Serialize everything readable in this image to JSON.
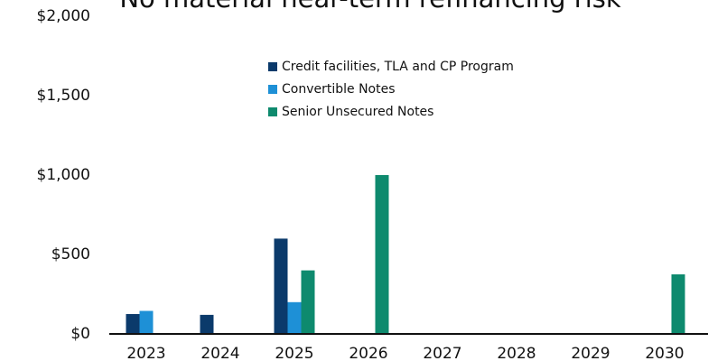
{
  "chart_data": {
    "type": "bar",
    "title": "No material near-term refinancing risk",
    "categories": [
      "2023",
      "2024",
      "2025",
      "2026",
      "2027",
      "2028",
      "2029",
      "2030"
    ],
    "series": [
      {
        "name": "Credit facilities, TLA and CP Program",
        "color": "#0b3a6b",
        "values": [
          125,
          120,
          600,
          null,
          null,
          null,
          null,
          null
        ]
      },
      {
        "name": "Convertible Notes",
        "color": "#1e90d6",
        "values": [
          145,
          null,
          200,
          null,
          null,
          null,
          null,
          null
        ]
      },
      {
        "name": "Senior Unsecured Notes",
        "color": "#0e8a6e",
        "values": [
          null,
          null,
          400,
          1000,
          null,
          null,
          null,
          375
        ]
      }
    ],
    "ylim": [
      0,
      2000
    ],
    "yticks": [
      {
        "value": 0,
        "label": "$0"
      },
      {
        "value": 500,
        "label": "$500"
      },
      {
        "value": 1000,
        "label": "$1,000"
      },
      {
        "value": 1500,
        "label": "$1,500"
      },
      {
        "value": 2000,
        "label": "$2,000"
      }
    ],
    "grid": false
  }
}
